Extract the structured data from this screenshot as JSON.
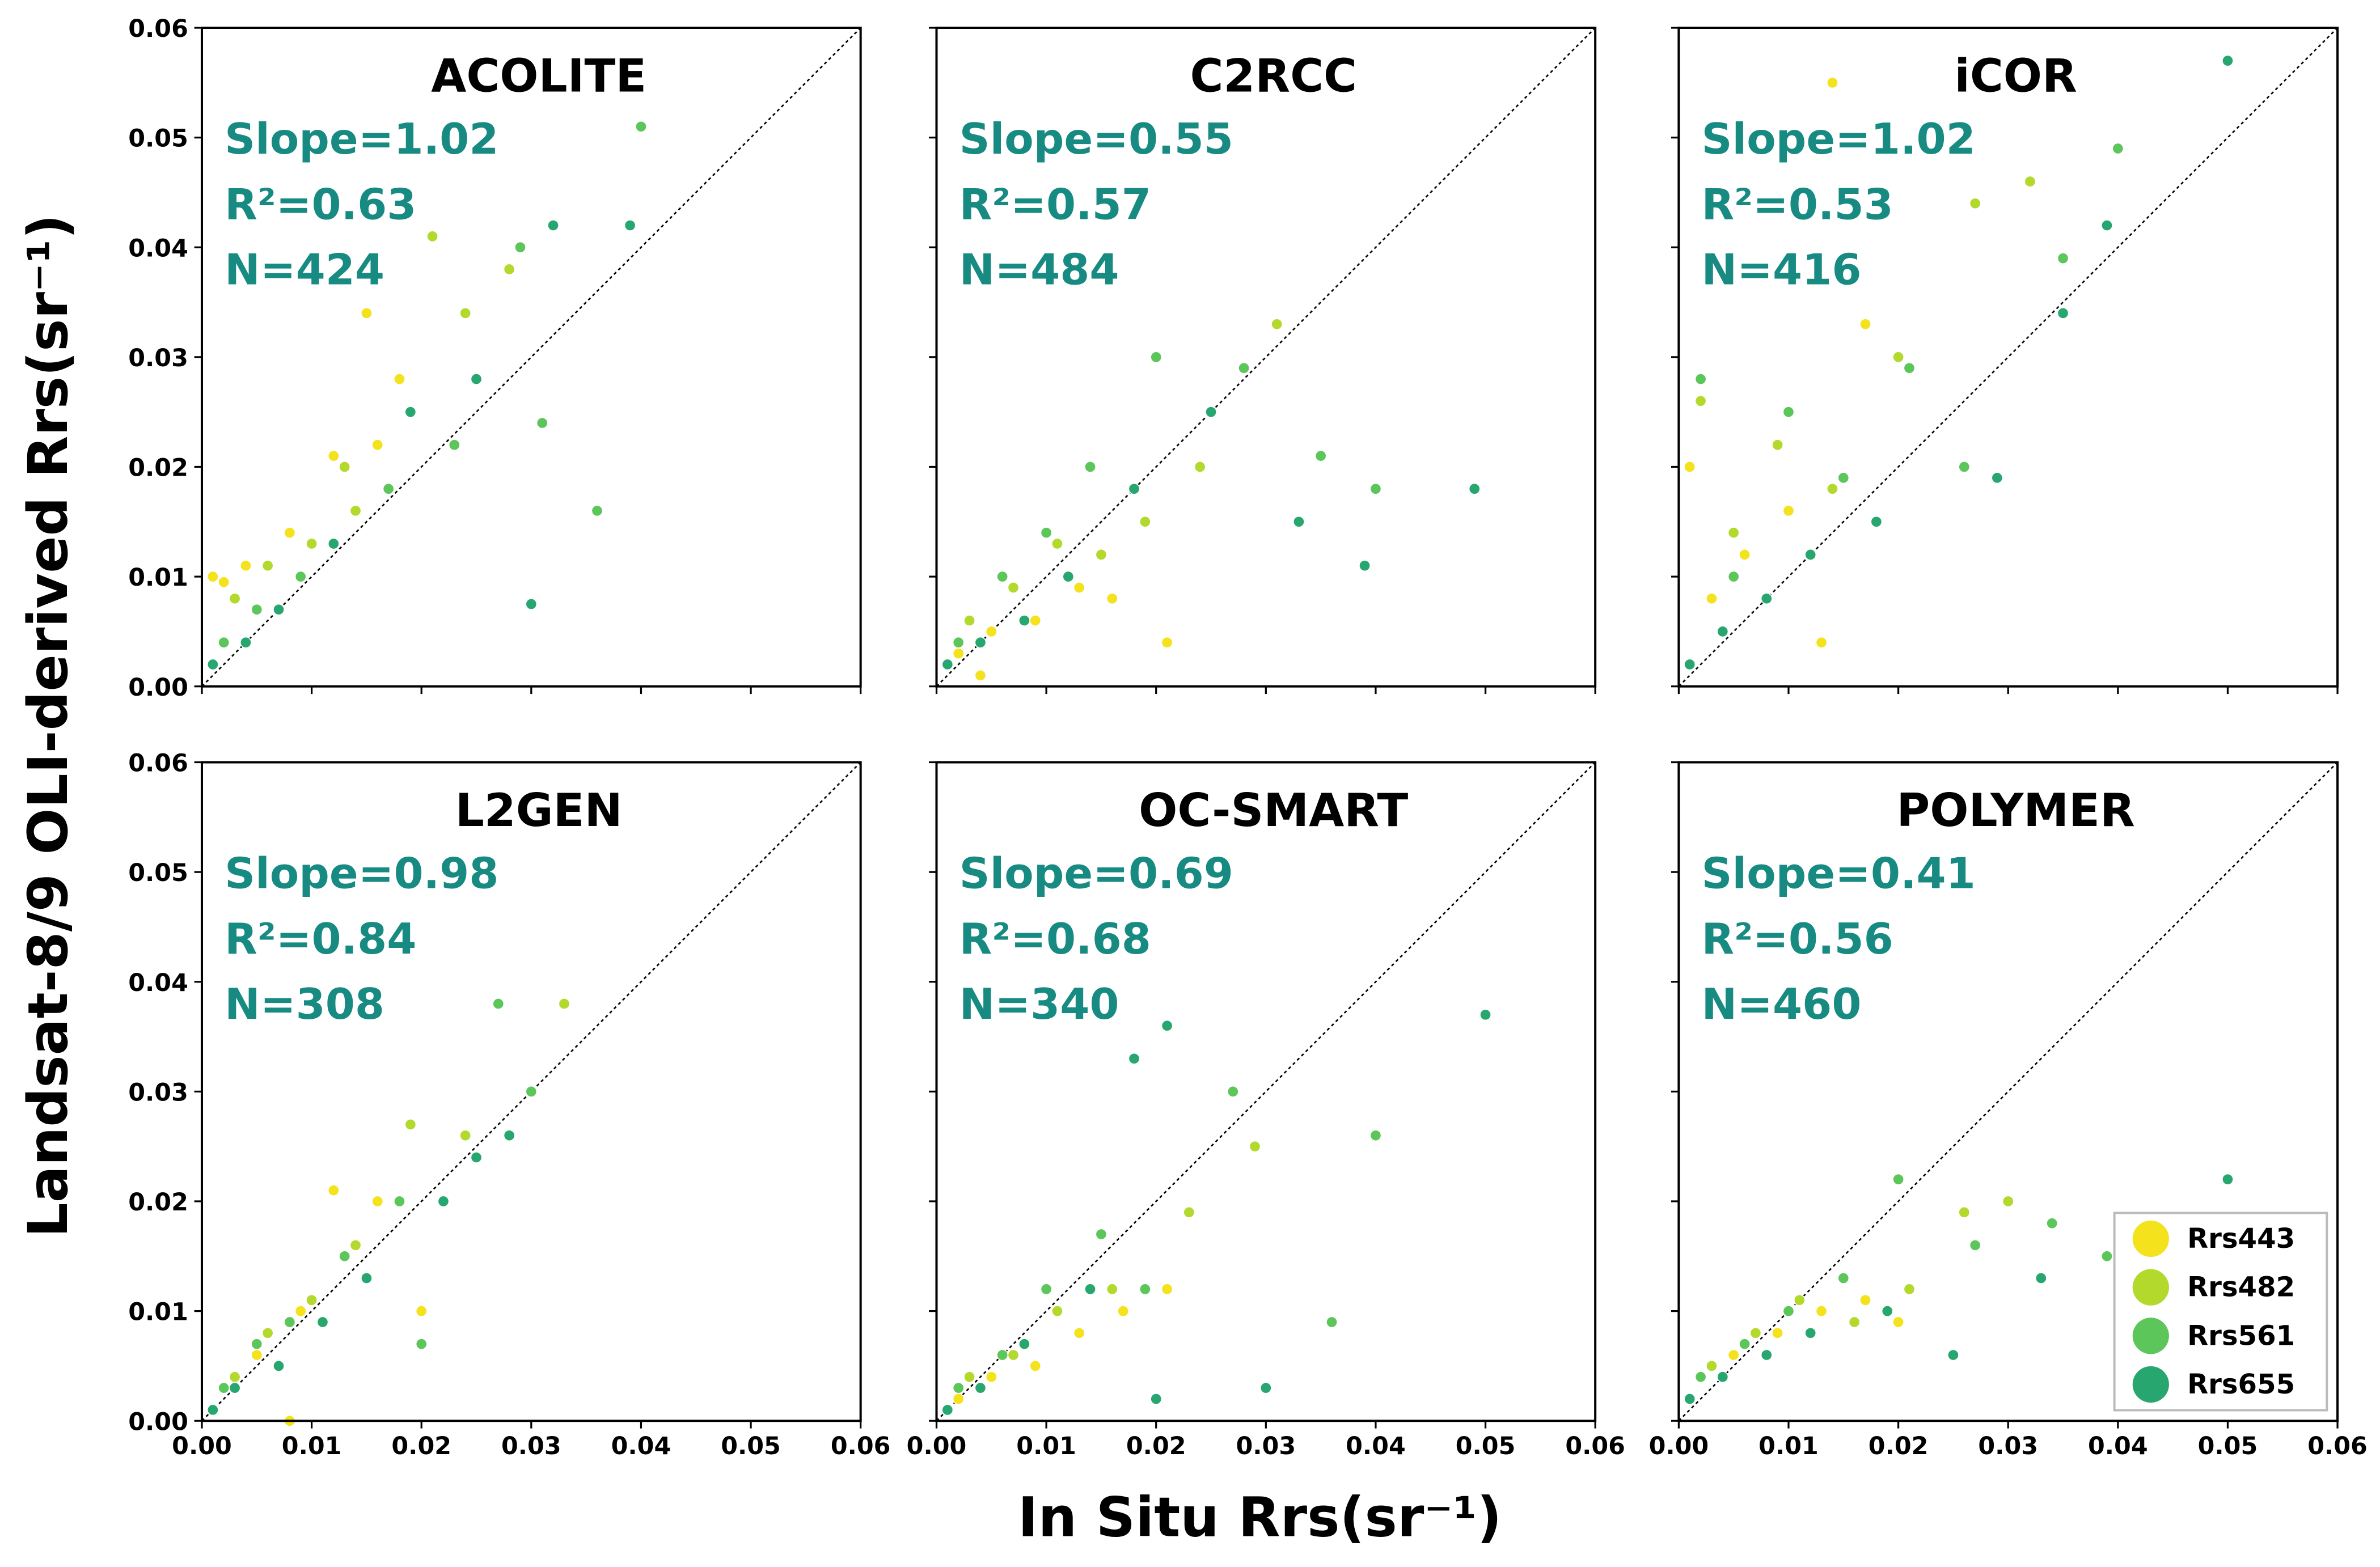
{
  "xlabel": "In Situ Rrs(sr⁻¹)",
  "ylabel": "Landsat-8/9 OLI-derived Rrs(sr⁻¹)",
  "chart_data": [
    {
      "type": "scatter",
      "title": "ACOLITE",
      "annotations": [
        "Slope=1.02",
        "R²=0.63",
        "N=424"
      ],
      "xlim": [
        0,
        0.06
      ],
      "ylim": [
        0,
        0.06
      ],
      "xticks": [
        0,
        0.01,
        0.02,
        0.03,
        0.04,
        0.05,
        0.06
      ],
      "yticks": [
        {
          "value": 0,
          "label": "0.00"
        },
        0.01,
        0.02,
        0.03,
        0.04,
        0.05,
        0.06
      ],
      "series": [
        {
          "color": "#f3e21c",
          "x": [
            0.001,
            0.002,
            0.004,
            0.008,
            0.012,
            0.015,
            0.018,
            0.016
          ],
          "values": [
            0.01,
            0.0095,
            0.011,
            0.014,
            0.021,
            0.034,
            0.028,
            0.022
          ]
        },
        {
          "color": "#b3d92c",
          "x": [
            0.003,
            0.006,
            0.01,
            0.014,
            0.021,
            0.024,
            0.028,
            0.013
          ],
          "values": [
            0.008,
            0.011,
            0.013,
            0.016,
            0.041,
            0.034,
            0.038,
            0.02
          ]
        },
        {
          "color": "#5cc65a",
          "x": [
            0.002,
            0.005,
            0.009,
            0.017,
            0.023,
            0.029,
            0.036,
            0.04,
            0.031
          ],
          "values": [
            0.004,
            0.007,
            0.01,
            0.018,
            0.022,
            0.04,
            0.016,
            0.051,
            0.024
          ]
        },
        {
          "color": "#27a66f",
          "x": [
            0.001,
            0.004,
            0.007,
            0.012,
            0.019,
            0.025,
            0.032,
            0.03,
            0.039
          ],
          "values": [
            0.002,
            0.004,
            0.007,
            0.013,
            0.025,
            0.028,
            0.042,
            0.0075,
            0.042
          ]
        }
      ]
    },
    {
      "type": "scatter",
      "title": "C2RCC",
      "annotations": [
        "Slope=0.55",
        "R²=0.57",
        "N=484"
      ],
      "xlim": [
        0,
        0.06
      ],
      "ylim": [
        0,
        0.06
      ],
      "xticks": [
        0,
        0.01,
        0.02,
        0.03,
        0.04,
        0.05,
        0.06
      ],
      "yticks": [
        0,
        0.01,
        0.02,
        0.03,
        0.04,
        0.05,
        0.06
      ],
      "series": [
        {
          "color": "#f3e21c",
          "x": [
            0.002,
            0.005,
            0.009,
            0.013,
            0.016,
            0.021,
            0.004
          ],
          "values": [
            0.003,
            0.005,
            0.006,
            0.009,
            0.008,
            0.004,
            0.001
          ]
        },
        {
          "color": "#b3d92c",
          "x": [
            0.003,
            0.007,
            0.011,
            0.015,
            0.019,
            0.024,
            0.031
          ],
          "values": [
            0.006,
            0.009,
            0.013,
            0.012,
            0.015,
            0.02,
            0.033
          ]
        },
        {
          "color": "#5cc65a",
          "x": [
            0.002,
            0.006,
            0.01,
            0.014,
            0.02,
            0.028,
            0.035,
            0.04
          ],
          "values": [
            0.004,
            0.01,
            0.014,
            0.02,
            0.03,
            0.029,
            0.021,
            0.018
          ]
        },
        {
          "color": "#27a66f",
          "x": [
            0.001,
            0.004,
            0.008,
            0.012,
            0.018,
            0.025,
            0.033,
            0.039,
            0.049
          ],
          "values": [
            0.002,
            0.004,
            0.006,
            0.01,
            0.018,
            0.025,
            0.015,
            0.011,
            0.018
          ]
        }
      ]
    },
    {
      "type": "scatter",
      "title": "iCOR",
      "annotations": [
        "Slope=1.02",
        "R²=0.53",
        "N=416"
      ],
      "xlim": [
        0,
        0.06
      ],
      "ylim": [
        0,
        0.06
      ],
      "xticks": [
        0,
        0.01,
        0.02,
        0.03,
        0.04,
        0.05,
        0.06
      ],
      "yticks": [
        0,
        0.01,
        0.02,
        0.03,
        0.04,
        0.05,
        0.06
      ],
      "series": [
        {
          "color": "#f3e21c",
          "x": [
            0.001,
            0.003,
            0.006,
            0.01,
            0.014,
            0.017,
            0.013
          ],
          "values": [
            0.02,
            0.008,
            0.012,
            0.016,
            0.055,
            0.033,
            0.004
          ]
        },
        {
          "color": "#b3d92c",
          "x": [
            0.002,
            0.005,
            0.009,
            0.014,
            0.02,
            0.027,
            0.032
          ],
          "values": [
            0.026,
            0.014,
            0.022,
            0.018,
            0.03,
            0.044,
            0.046
          ]
        },
        {
          "color": "#5cc65a",
          "x": [
            0.002,
            0.005,
            0.01,
            0.015,
            0.021,
            0.026,
            0.035,
            0.04
          ],
          "values": [
            0.028,
            0.01,
            0.025,
            0.019,
            0.029,
            0.02,
            0.039,
            0.049
          ]
        },
        {
          "color": "#27a66f",
          "x": [
            0.001,
            0.004,
            0.008,
            0.012,
            0.018,
            0.029,
            0.035,
            0.05,
            0.039
          ],
          "values": [
            0.002,
            0.005,
            0.008,
            0.012,
            0.015,
            0.019,
            0.034,
            0.057,
            0.042
          ]
        }
      ]
    },
    {
      "type": "scatter",
      "title": "L2GEN",
      "annotations": [
        "Slope=0.98",
        "R²=0.84",
        "N=308"
      ],
      "xlim": [
        0,
        0.06
      ],
      "ylim": [
        0,
        0.06
      ],
      "xticks": [
        {
          "value": 0,
          "label": "0.00"
        },
        0.01,
        0.02,
        0.03,
        0.04,
        0.05,
        0.06
      ],
      "yticks": [
        {
          "value": 0,
          "label": "0.00"
        },
        0.01,
        0.02,
        0.03,
        0.04,
        0.05,
        0.06
      ],
      "series": [
        {
          "color": "#f3e21c",
          "x": [
            0.002,
            0.005,
            0.009,
            0.012,
            0.016,
            0.02,
            0.008
          ],
          "values": [
            0.003,
            0.006,
            0.01,
            0.021,
            0.02,
            0.01,
            0.0
          ]
        },
        {
          "color": "#b3d92c",
          "x": [
            0.003,
            0.006,
            0.01,
            0.014,
            0.019,
            0.024,
            0.033
          ],
          "values": [
            0.004,
            0.008,
            0.011,
            0.016,
            0.027,
            0.026,
            0.038
          ]
        },
        {
          "color": "#5cc65a",
          "x": [
            0.002,
            0.005,
            0.008,
            0.013,
            0.018,
            0.02,
            0.027,
            0.03
          ],
          "values": [
            0.003,
            0.007,
            0.009,
            0.015,
            0.02,
            0.007,
            0.038,
            0.03
          ]
        },
        {
          "color": "#27a66f",
          "x": [
            0.001,
            0.003,
            0.007,
            0.011,
            0.015,
            0.022,
            0.025,
            0.028
          ],
          "values": [
            0.001,
            0.003,
            0.005,
            0.009,
            0.013,
            0.02,
            0.024,
            0.026
          ]
        }
      ]
    },
    {
      "type": "scatter",
      "title": "OC-SMART",
      "annotations": [
        "Slope=0.69",
        "R²=0.68",
        "N=340"
      ],
      "xlim": [
        0,
        0.06
      ],
      "ylim": [
        0,
        0.06
      ],
      "xticks": [
        {
          "value": 0,
          "label": "0.00"
        },
        0.01,
        0.02,
        0.03,
        0.04,
        0.05,
        0.06
      ],
      "yticks": [
        0,
        0.01,
        0.02,
        0.03,
        0.04,
        0.05,
        0.06
      ],
      "series": [
        {
          "color": "#f3e21c",
          "x": [
            0.002,
            0.005,
            0.009,
            0.013,
            0.017,
            0.021
          ],
          "values": [
            0.002,
            0.004,
            0.005,
            0.008,
            0.01,
            0.012
          ]
        },
        {
          "color": "#b3d92c",
          "x": [
            0.003,
            0.007,
            0.011,
            0.016,
            0.023,
            0.029
          ],
          "values": [
            0.004,
            0.006,
            0.01,
            0.012,
            0.019,
            0.025
          ]
        },
        {
          "color": "#5cc65a",
          "x": [
            0.002,
            0.006,
            0.01,
            0.015,
            0.019,
            0.027,
            0.036,
            0.04
          ],
          "values": [
            0.003,
            0.006,
            0.012,
            0.017,
            0.012,
            0.03,
            0.009,
            0.026
          ]
        },
        {
          "color": "#27a66f",
          "x": [
            0.001,
            0.004,
            0.008,
            0.014,
            0.018,
            0.021,
            0.03,
            0.05,
            0.02
          ],
          "values": [
            0.001,
            0.003,
            0.007,
            0.012,
            0.033,
            0.036,
            0.003,
            0.037,
            0.002
          ]
        }
      ]
    },
    {
      "type": "scatter",
      "title": "POLYMER",
      "annotations": [
        "Slope=0.41",
        "R²=0.56",
        "N=460"
      ],
      "xlim": [
        0,
        0.06
      ],
      "ylim": [
        0,
        0.06
      ],
      "xticks": [
        {
          "value": 0,
          "label": "0.00"
        },
        0.01,
        0.02,
        0.03,
        0.04,
        0.05,
        0.06
      ],
      "yticks": [
        0,
        0.01,
        0.02,
        0.03,
        0.04,
        0.05,
        0.06
      ],
      "legend": "lower right",
      "series": [
        {
          "name": "Rrs443",
          "color": "#f3e21c",
          "x": [
            0.002,
            0.005,
            0.009,
            0.013,
            0.017,
            0.02
          ],
          "values": [
            0.004,
            0.006,
            0.008,
            0.01,
            0.011,
            0.009
          ]
        },
        {
          "name": "Rrs482",
          "color": "#b3d92c",
          "x": [
            0.003,
            0.007,
            0.011,
            0.016,
            0.021,
            0.026,
            0.03
          ],
          "values": [
            0.005,
            0.008,
            0.011,
            0.009,
            0.012,
            0.019,
            0.02
          ]
        },
        {
          "name": "Rrs561",
          "color": "#5cc65a",
          "x": [
            0.002,
            0.006,
            0.01,
            0.015,
            0.02,
            0.027,
            0.034,
            0.039
          ],
          "values": [
            0.004,
            0.007,
            0.01,
            0.013,
            0.022,
            0.016,
            0.018,
            0.015
          ]
        },
        {
          "name": "Rrs655",
          "color": "#27a66f",
          "x": [
            0.001,
            0.004,
            0.008,
            0.012,
            0.019,
            0.025,
            0.033,
            0.05
          ],
          "values": [
            0.002,
            0.004,
            0.006,
            0.008,
            0.01,
            0.006,
            0.013,
            0.022
          ]
        }
      ]
    }
  ]
}
